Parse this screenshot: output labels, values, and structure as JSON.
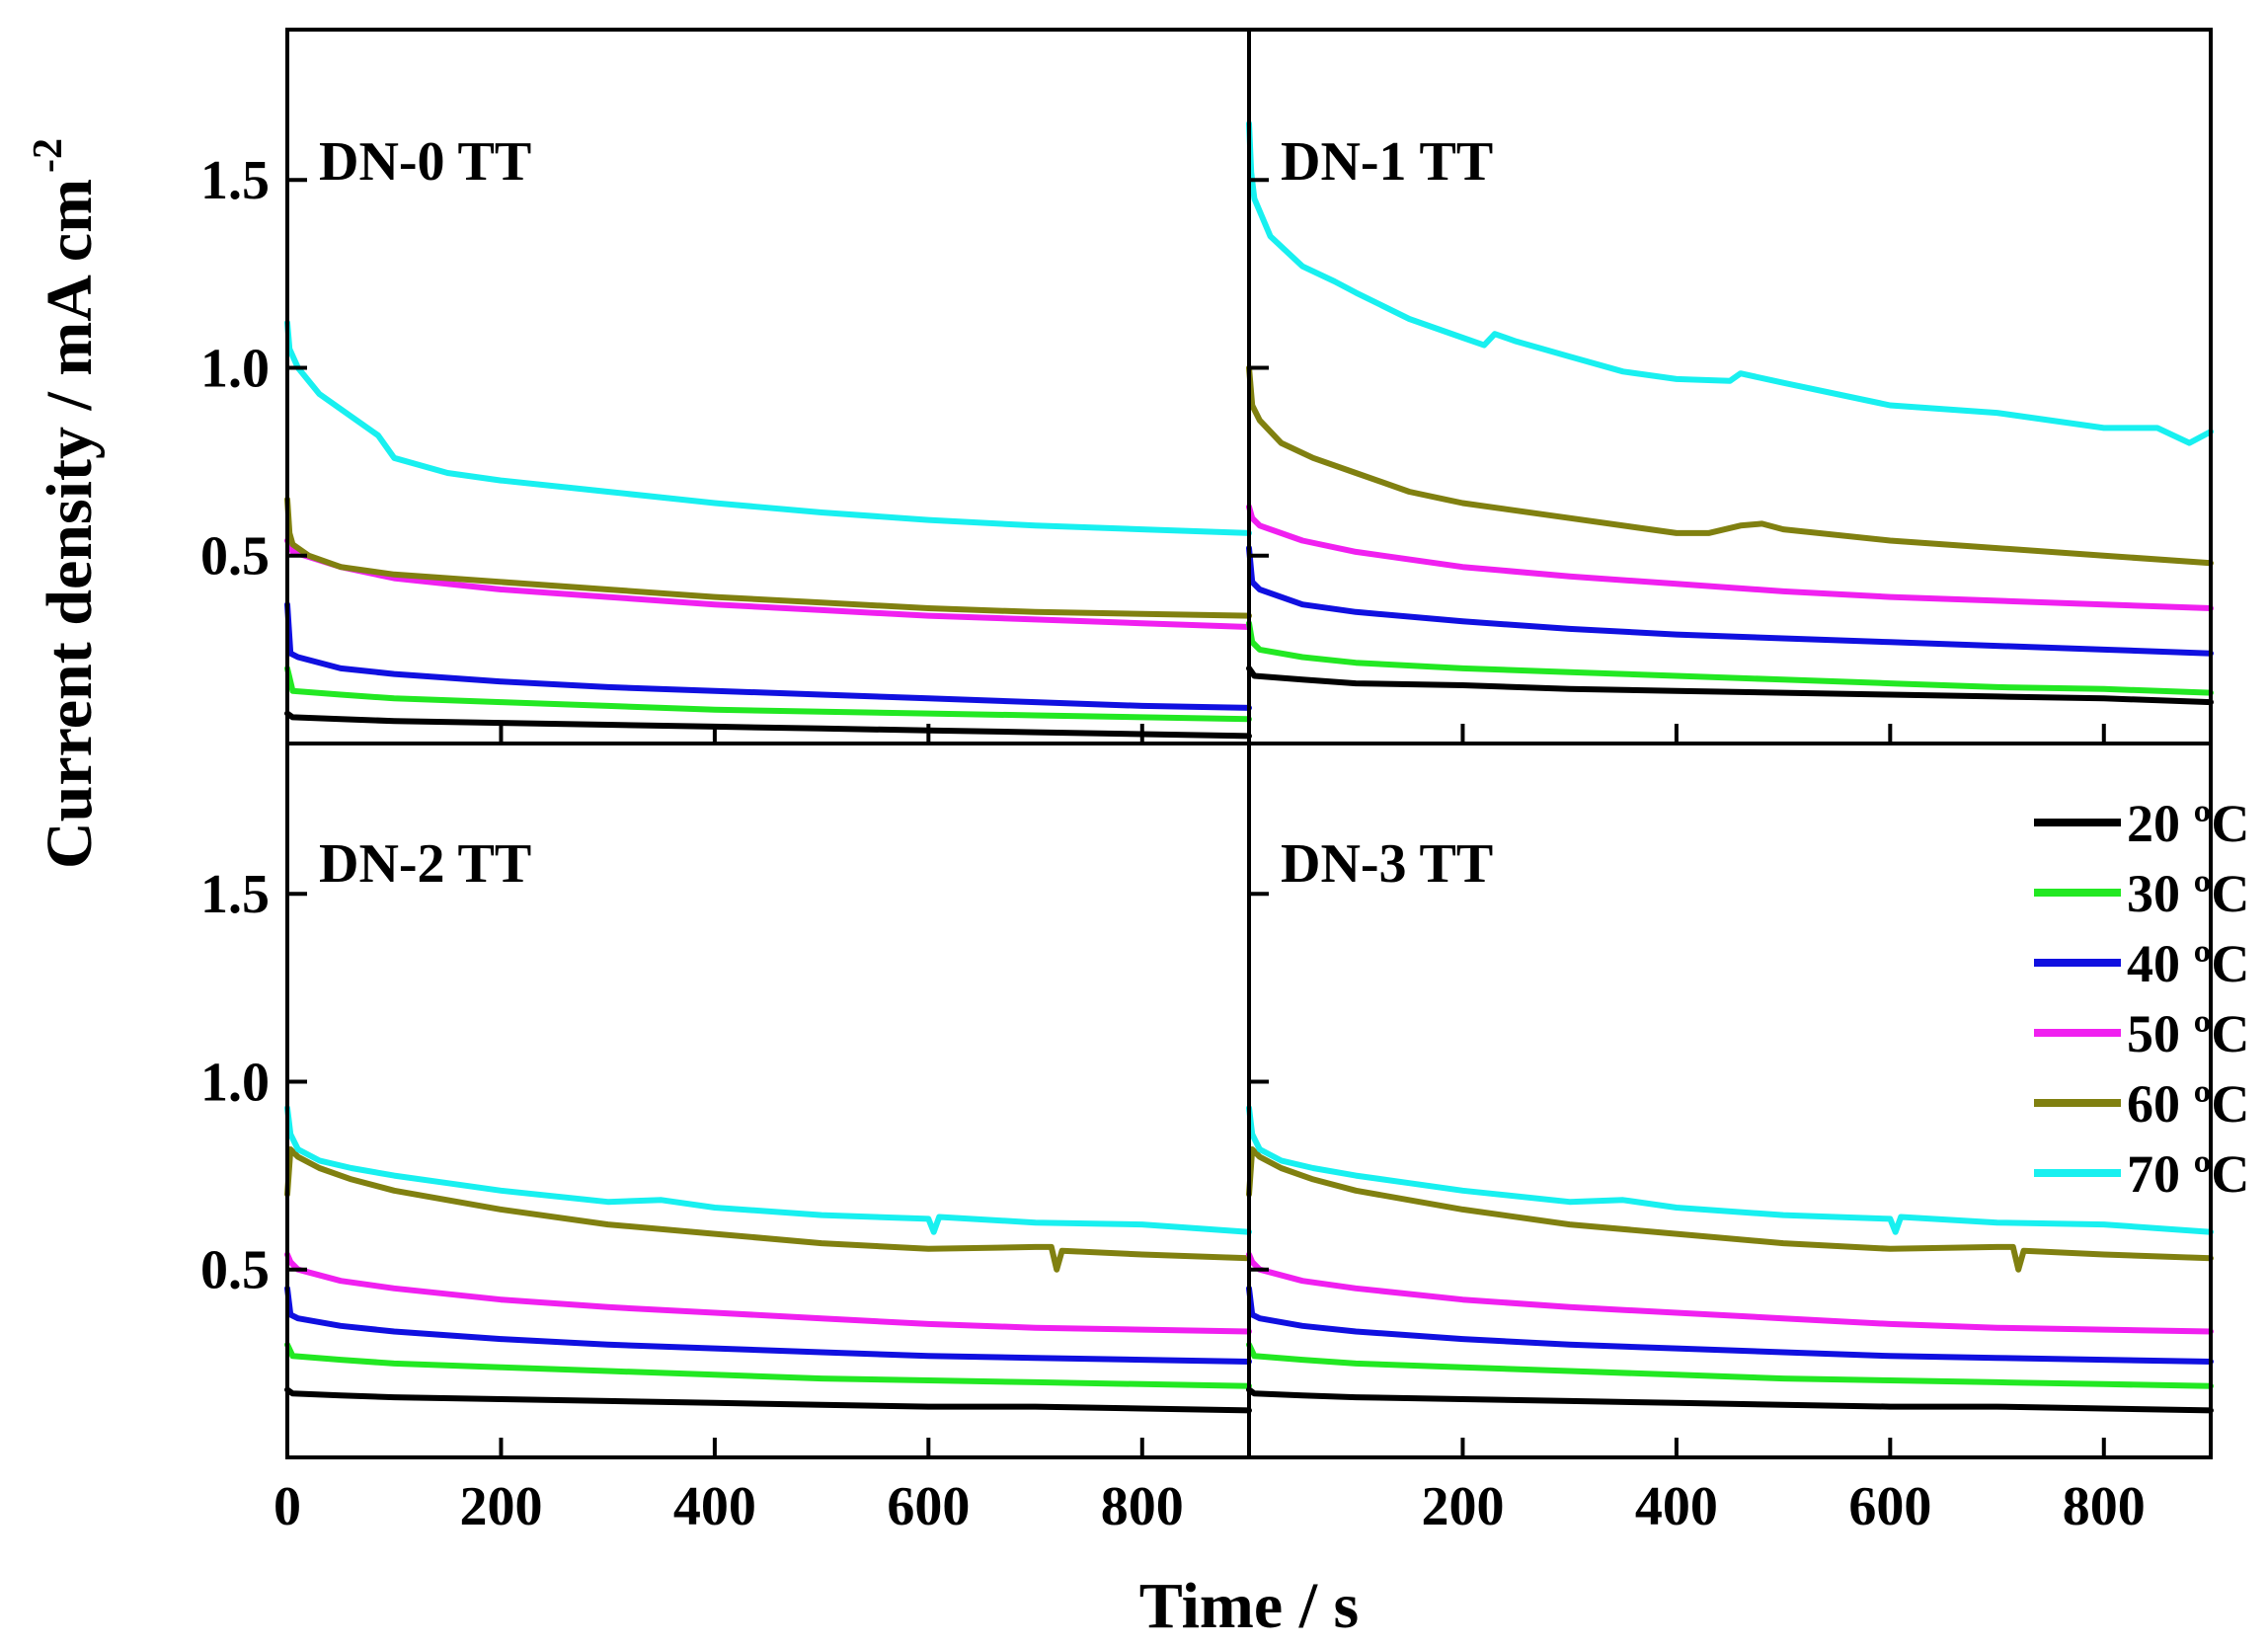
{
  "chart_data": {
    "type": "line",
    "xlabel": "Time / s",
    "ylabel": "Current density / mA cm",
    "ylabel_superscript": "-2",
    "xlim": [
      0,
      900
    ],
    "ylim": [
      0,
      1.9
    ],
    "x_ticks": [
      0,
      200,
      400,
      600,
      800
    ],
    "x_tick_labels_left": [
      "0",
      "200",
      "400",
      "600",
      "800"
    ],
    "x_tick_labels_right": [
      "200",
      "400",
      "600",
      "800"
    ],
    "y_ticks": [
      0.5,
      1.0,
      1.5
    ],
    "y_tick_labels": [
      "0.5",
      "1.0",
      "1.5"
    ],
    "legend": {
      "position": "right, lower-right panel",
      "entries": [
        "20 ºC",
        "30 ºC",
        "40 ºC",
        "50 ºC",
        "60 ºC",
        "70 ºC"
      ]
    },
    "colors": {
      "20 ºC": "#000000",
      "30 ºC": "#22e822",
      "40 ºC": "#1010e0",
      "50 ºC": "#f020f0",
      "60 ºC": "#808010",
      "70 ºC": "#18f0f0"
    },
    "series_order": [
      "20 ºC",
      "30 ºC",
      "40 ºC",
      "50 ºC",
      "60 ºC",
      "70 ºC"
    ],
    "panels": [
      {
        "label": "DN-0 TT",
        "series": [
          {
            "name": "20 ºC",
            "x": [
              0,
              5,
              50,
              100,
              200,
              300,
              400,
              500,
              600,
              700,
              800,
              900
            ],
            "y": [
              0.08,
              0.07,
              0.065,
              0.06,
              0.055,
              0.05,
              0.045,
              0.04,
              0.035,
              0.03,
              0.025,
              0.02
            ]
          },
          {
            "name": "30 ºC",
            "x": [
              0,
              5,
              50,
              100,
              200,
              300,
              400,
              500,
              600,
              700,
              800,
              900
            ],
            "y": [
              0.2,
              0.14,
              0.13,
              0.12,
              0.11,
              0.1,
              0.09,
              0.085,
              0.08,
              0.075,
              0.07,
              0.065
            ]
          },
          {
            "name": "40 ºC",
            "x": [
              0,
              3,
              10,
              50,
              100,
              200,
              300,
              400,
              500,
              600,
              700,
              800,
              900
            ],
            "y": [
              0.37,
              0.24,
              0.23,
              0.2,
              0.185,
              0.165,
              0.15,
              0.14,
              0.13,
              0.12,
              0.11,
              0.1,
              0.095
            ]
          },
          {
            "name": "50 ºC",
            "x": [
              0,
              5,
              50,
              100,
              200,
              300,
              400,
              500,
              600,
              700,
              800,
              900
            ],
            "y": [
              0.54,
              0.51,
              0.47,
              0.44,
              0.41,
              0.39,
              0.37,
              0.355,
              0.34,
              0.33,
              0.32,
              0.31
            ]
          },
          {
            "name": "60 ºC",
            "x": [
              0,
              2,
              5,
              20,
              50,
              100,
              200,
              300,
              400,
              500,
              600,
              700,
              800,
              900
            ],
            "y": [
              0.65,
              0.56,
              0.53,
              0.5,
              0.47,
              0.45,
              0.43,
              0.41,
              0.39,
              0.375,
              0.36,
              0.35,
              0.345,
              0.34
            ]
          },
          {
            "name": "70 ºC",
            "x": [
              0,
              2,
              10,
              30,
              60,
              85,
              100,
              150,
              200,
              300,
              400,
              500,
              600,
              700,
              800,
              900
            ],
            "y": [
              1.12,
              1.05,
              1.0,
              0.93,
              0.87,
              0.82,
              0.76,
              0.72,
              0.7,
              0.67,
              0.64,
              0.615,
              0.595,
              0.58,
              0.57,
              0.56
            ]
          }
        ]
      },
      {
        "label": "DN-1 TT",
        "series": [
          {
            "name": "20 ºC",
            "x": [
              0,
              5,
              50,
              100,
              200,
              300,
              400,
              500,
              600,
              700,
              800,
              900
            ],
            "y": [
              0.2,
              0.18,
              0.17,
              0.16,
              0.155,
              0.145,
              0.14,
              0.135,
              0.13,
              0.125,
              0.12,
              0.11
            ]
          },
          {
            "name": "30 ºC",
            "x": [
              0,
              3,
              10,
              50,
              100,
              200,
              300,
              400,
              500,
              600,
              700,
              800,
              900
            ],
            "y": [
              0.32,
              0.27,
              0.25,
              0.23,
              0.215,
              0.2,
              0.19,
              0.18,
              0.17,
              0.16,
              0.15,
              0.145,
              0.135
            ]
          },
          {
            "name": "40 ºC",
            "x": [
              0,
              3,
              10,
              50,
              100,
              200,
              300,
              400,
              500,
              600,
              700,
              800,
              900
            ],
            "y": [
              0.52,
              0.43,
              0.41,
              0.37,
              0.35,
              0.325,
              0.305,
              0.29,
              0.28,
              0.27,
              0.26,
              0.25,
              0.24
            ]
          },
          {
            "name": "50 ºC",
            "x": [
              0,
              3,
              10,
              50,
              100,
              200,
              300,
              400,
              500,
              600,
              700,
              800,
              900
            ],
            "y": [
              0.63,
              0.6,
              0.58,
              0.54,
              0.51,
              0.47,
              0.445,
              0.425,
              0.405,
              0.39,
              0.38,
              0.37,
              0.36
            ]
          },
          {
            "name": "60 ºC",
            "x": [
              0,
              3,
              10,
              30,
              60,
              100,
              150,
              200,
              300,
              400,
              430,
              460,
              480,
              500,
              600,
              700,
              800,
              900
            ],
            "y": [
              1.0,
              0.9,
              0.86,
              0.8,
              0.76,
              0.72,
              0.67,
              0.64,
              0.6,
              0.56,
              0.56,
              0.58,
              0.585,
              0.57,
              0.54,
              0.52,
              0.5,
              0.48
            ]
          },
          {
            "name": "70 ºC",
            "x": [
              0,
              2,
              5,
              20,
              50,
              80,
              100,
              150,
              200,
              220,
              230,
              250,
              300,
              350,
              400,
              450,
              460,
              500,
              600,
              700,
              800,
              850,
              880,
              900
            ],
            "y": [
              1.65,
              1.52,
              1.45,
              1.35,
              1.27,
              1.23,
              1.2,
              1.13,
              1.08,
              1.06,
              1.09,
              1.07,
              1.03,
              0.99,
              0.97,
              0.965,
              0.985,
              0.96,
              0.9,
              0.88,
              0.84,
              0.84,
              0.8,
              0.83
            ]
          }
        ]
      },
      {
        "label": "DN-2 TT",
        "series": [
          {
            "name": "20 ºC",
            "x": [
              0,
              5,
              50,
              100,
              200,
              300,
              400,
              500,
              600,
              700,
              800,
              900
            ],
            "y": [
              0.18,
              0.17,
              0.165,
              0.16,
              0.155,
              0.15,
              0.145,
              0.14,
              0.135,
              0.135,
              0.13,
              0.125
            ]
          },
          {
            "name": "30 ºC",
            "x": [
              0,
              5,
              50,
              100,
              200,
              300,
              400,
              500,
              600,
              700,
              800,
              900
            ],
            "y": [
              0.3,
              0.27,
              0.26,
              0.25,
              0.24,
              0.23,
              0.22,
              0.21,
              0.205,
              0.2,
              0.195,
              0.19
            ]
          },
          {
            "name": "40 ºC",
            "x": [
              0,
              3,
              10,
              50,
              100,
              200,
              300,
              400,
              500,
              600,
              700,
              800,
              900
            ],
            "y": [
              0.45,
              0.38,
              0.37,
              0.35,
              0.335,
              0.315,
              0.3,
              0.29,
              0.28,
              0.27,
              0.265,
              0.26,
              0.255
            ]
          },
          {
            "name": "50 ºC",
            "x": [
              0,
              3,
              10,
              50,
              100,
              200,
              300,
              400,
              500,
              600,
              700,
              800,
              900
            ],
            "y": [
              0.54,
              0.52,
              0.5,
              0.47,
              0.45,
              0.42,
              0.4,
              0.385,
              0.37,
              0.355,
              0.345,
              0.34,
              0.335
            ]
          },
          {
            "name": "60 ºC",
            "x": [
              0,
              3,
              10,
              30,
              60,
              100,
              200,
              300,
              400,
              500,
              600,
              700,
              715,
              720,
              725,
              800,
              900
            ],
            "y": [
              0.7,
              0.82,
              0.8,
              0.77,
              0.74,
              0.71,
              0.66,
              0.62,
              0.595,
              0.57,
              0.555,
              0.56,
              0.56,
              0.5,
              0.55,
              0.54,
              0.53
            ]
          },
          {
            "name": "70 ºC",
            "x": [
              0,
              3,
              10,
              30,
              60,
              100,
              150,
              200,
              300,
              350,
              400,
              500,
              600,
              605,
              610,
              700,
              800,
              900
            ],
            "y": [
              0.93,
              0.86,
              0.82,
              0.79,
              0.77,
              0.75,
              0.73,
              0.71,
              0.68,
              0.685,
              0.665,
              0.645,
              0.635,
              0.6,
              0.64,
              0.625,
              0.62,
              0.6
            ]
          }
        ]
      },
      {
        "label": "DN-3 TT",
        "series": [
          {
            "name": "20 ºC",
            "x": [
              0,
              5,
              50,
              100,
              200,
              300,
              400,
              500,
              600,
              700,
              800,
              900
            ],
            "y": [
              0.18,
              0.17,
              0.165,
              0.16,
              0.155,
              0.15,
              0.145,
              0.14,
              0.135,
              0.135,
              0.13,
              0.125
            ]
          },
          {
            "name": "30 ºC",
            "x": [
              0,
              5,
              50,
              100,
              200,
              300,
              400,
              500,
              600,
              700,
              800,
              900
            ],
            "y": [
              0.3,
              0.27,
              0.26,
              0.25,
              0.24,
              0.23,
              0.22,
              0.21,
              0.205,
              0.2,
              0.195,
              0.19
            ]
          },
          {
            "name": "40 ºC",
            "x": [
              0,
              3,
              10,
              50,
              100,
              200,
              300,
              400,
              500,
              600,
              700,
              800,
              900
            ],
            "y": [
              0.45,
              0.38,
              0.37,
              0.35,
              0.335,
              0.315,
              0.3,
              0.29,
              0.28,
              0.27,
              0.265,
              0.26,
              0.255
            ]
          },
          {
            "name": "50 ºC",
            "x": [
              0,
              3,
              10,
              50,
              100,
              200,
              300,
              400,
              500,
              600,
              700,
              800,
              900
            ],
            "y": [
              0.54,
              0.52,
              0.5,
              0.47,
              0.45,
              0.42,
              0.4,
              0.385,
              0.37,
              0.355,
              0.345,
              0.34,
              0.335
            ]
          },
          {
            "name": "60 ºC",
            "x": [
              0,
              3,
              10,
              30,
              60,
              100,
              200,
              300,
              400,
              500,
              600,
              700,
              715,
              720,
              725,
              800,
              900
            ],
            "y": [
              0.7,
              0.82,
              0.8,
              0.77,
              0.74,
              0.71,
              0.66,
              0.62,
              0.595,
              0.57,
              0.555,
              0.56,
              0.56,
              0.5,
              0.55,
              0.54,
              0.53
            ]
          },
          {
            "name": "70 ºC",
            "x": [
              0,
              3,
              10,
              30,
              60,
              100,
              150,
              200,
              300,
              350,
              400,
              500,
              600,
              605,
              610,
              700,
              800,
              900
            ],
            "y": [
              0.93,
              0.86,
              0.82,
              0.79,
              0.77,
              0.75,
              0.73,
              0.71,
              0.68,
              0.685,
              0.665,
              0.645,
              0.635,
              0.6,
              0.64,
              0.625,
              0.62,
              0.6
            ]
          }
        ]
      }
    ]
  }
}
